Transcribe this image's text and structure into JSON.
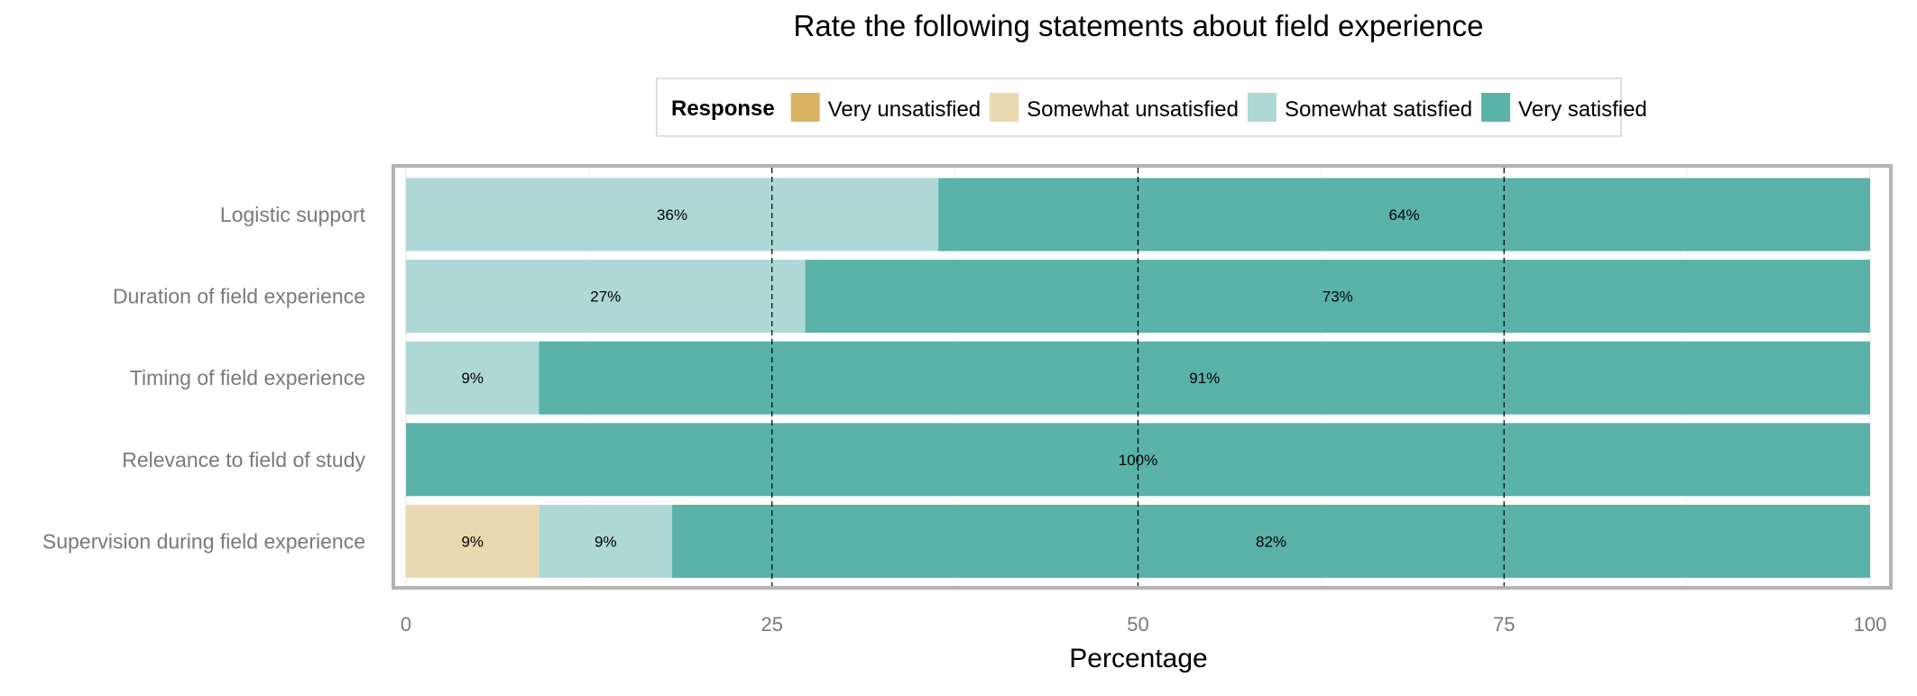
{
  "chart_data": {
    "type": "bar",
    "orientation": "horizontal",
    "stacked": true,
    "title": "Rate the following statements about field experience",
    "xlabel": "Percentage",
    "ylabel": "",
    "xlim": [
      0,
      100
    ],
    "x_ticks": [
      0,
      25,
      50,
      75,
      100
    ],
    "x_tick_labels": [
      "0",
      "25",
      "50",
      "75",
      "100"
    ],
    "reference_lines": [
      25,
      50,
      75
    ],
    "grid": true,
    "legend": {
      "title": "Response",
      "position": "top"
    },
    "categories": [
      "Logistic support",
      "Duration of field experience",
      "Timing of field experience",
      "Relevance to field of study",
      "Supervision during field experience"
    ],
    "series": [
      {
        "name": "Very unsatisfied",
        "color": "#d9b362",
        "values": [
          0,
          0,
          0,
          0,
          0
        ],
        "labels": [
          "",
          "",
          "",
          "",
          ""
        ]
      },
      {
        "name": "Somewhat unsatisfied",
        "color": "#ead8b1",
        "values": [
          0,
          0,
          0,
          0,
          9.09
        ],
        "labels": [
          "",
          "",
          "",
          "",
          "9%"
        ]
      },
      {
        "name": "Somewhat satisfied",
        "color": "#add8d5",
        "values": [
          36.36,
          27.27,
          9.09,
          0,
          9.09
        ],
        "labels": [
          "36%",
          "27%",
          "9%",
          "",
          "9%"
        ]
      },
      {
        "name": "Very satisfied",
        "color": "#5ab2a9",
        "values": [
          63.64,
          72.73,
          90.91,
          100,
          81.82
        ],
        "labels": [
          "64%",
          "73%",
          "91%",
          "100%",
          "82%"
        ]
      }
    ]
  }
}
